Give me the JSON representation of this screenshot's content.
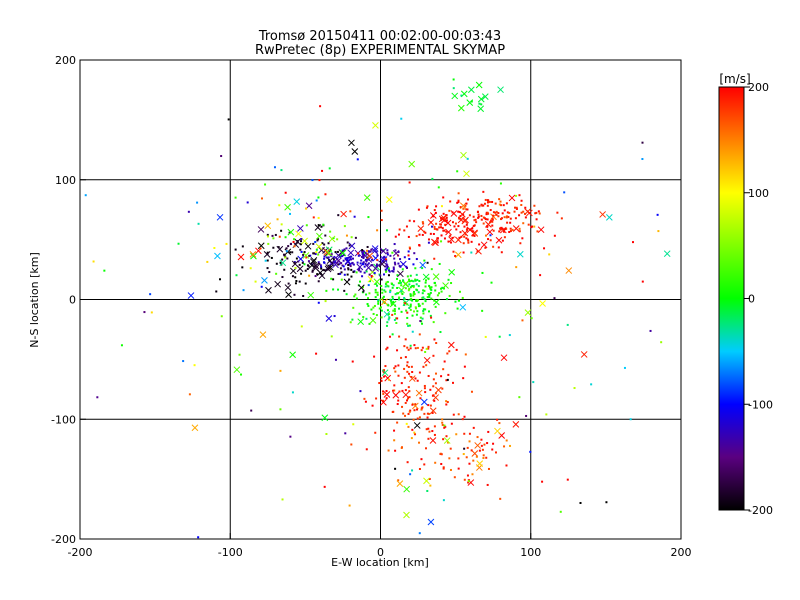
{
  "chart_data": {
    "type": "scatter",
    "title": "Tromsø 20150411 00:02:00-00:03:43",
    "subtitle": "RwPretec (8p) EXPERIMENTAL SKYMAP",
    "xlabel": "E-W location [km]",
    "ylabel": "N-S location [km]",
    "xlim": [
      -200,
      200
    ],
    "ylim": [
      -200,
      200
    ],
    "xticks": [
      -200,
      -100,
      0,
      100,
      200
    ],
    "yticks": [
      -200,
      -100,
      0,
      100,
      200
    ],
    "x_tick_labels": [
      "-200",
      "-100",
      "0",
      "100",
      "200"
    ],
    "y_tick_labels": [
      "-200",
      "-100",
      "0",
      "100",
      "200"
    ],
    "grid": true,
    "colorbar": {
      "label": "[m/s]",
      "range": [
        -200,
        200
      ],
      "ticks": [
        200,
        100,
        0,
        -100,
        -200
      ],
      "tick_labels": [
        "200",
        "100",
        "0",
        "-100",
        "-200"
      ],
      "colormap": "black-purple-blue-cyan-green-yellow-red"
    },
    "marker_types": [
      "dot",
      "cross"
    ],
    "clusters": [
      {
        "cx": 55,
        "cy": 62,
        "sx": 22,
        "sy": 12,
        "n": 200,
        "v": 195,
        "vs": 10,
        "cross_frac": 0.12
      },
      {
        "cx": 85,
        "cy": 72,
        "sx": 18,
        "sy": 8,
        "n": 80,
        "v": 185,
        "vs": 15,
        "cross_frac": 0.12
      },
      {
        "cx": 15,
        "cy": 3,
        "sx": 17,
        "sy": 12,
        "n": 260,
        "v": 5,
        "vs": 15,
        "cross_frac": 0.05
      },
      {
        "cx": -10,
        "cy": 33,
        "sx": 17,
        "sy": 6,
        "n": 170,
        "v": -125,
        "vs": 12,
        "cross_frac": 0.15
      },
      {
        "cx": -45,
        "cy": 32,
        "sx": 20,
        "sy": 12,
        "n": 140,
        "v": -190,
        "vs": 10,
        "cross_frac": 0.25
      },
      {
        "cx": 25,
        "cy": -75,
        "sx": 15,
        "sy": 25,
        "n": 160,
        "v": 190,
        "vs": 15,
        "cross_frac": 0.08
      },
      {
        "cx": 50,
        "cy": -125,
        "sx": 20,
        "sy": 15,
        "n": 90,
        "v": 180,
        "vs": 25,
        "cross_frac": 0.1
      },
      {
        "cx": 60,
        "cy": 170,
        "sx": 10,
        "sy": 5,
        "n": 16,
        "v": -10,
        "vs": 8,
        "cross_frac": 0.7
      },
      {
        "cx": -55,
        "cy": 50,
        "sx": 30,
        "sy": 25,
        "n": 90,
        "v": 60,
        "vs": 110,
        "cross_frac": 0.3
      },
      {
        "cx": 0,
        "cy": 0,
        "sx": 110,
        "sy": 110,
        "n": 200,
        "v": 0,
        "vs": 140,
        "cross_frac": 0.3
      }
    ]
  }
}
